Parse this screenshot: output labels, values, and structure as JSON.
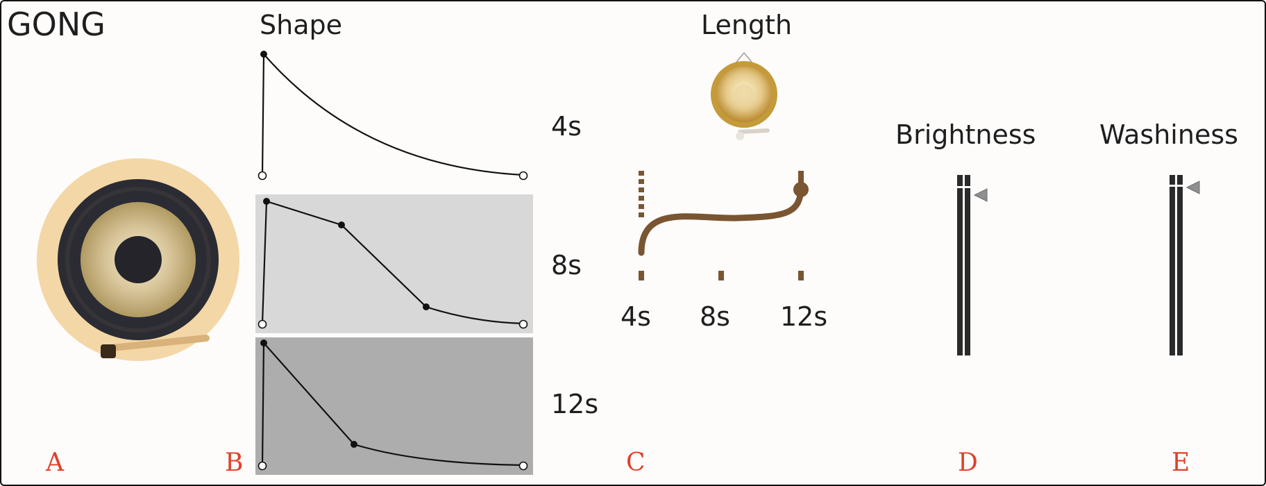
{
  "title": "GONG",
  "headers": {
    "shape": "Shape",
    "length": "Length",
    "brightness": "Brightness",
    "washiness": "Washiness"
  },
  "shape_durations": [
    "4s",
    "8s",
    "12s"
  ],
  "length_ticks": [
    "4s",
    "8s",
    "12s"
  ],
  "section_letters": [
    "A",
    "B",
    "C",
    "D",
    "E"
  ],
  "colors": {
    "section_letter": "#e0402a",
    "length_curve": "#7a5532",
    "gong_halo": "#f3d7a6",
    "gong_rim": "#2b2b33",
    "gong_bronze": "#d8c59a",
    "panel_light": "#d8d8d8",
    "panel_dark": "#adadad",
    "slider_handle": "#8f8f8f"
  },
  "icons": {
    "gong_illustration": "large-gong-icon",
    "length_gong": "hanging-gong-icon"
  },
  "sliders": {
    "brightness_level": 0.1,
    "washiness_level": 0.06
  }
}
